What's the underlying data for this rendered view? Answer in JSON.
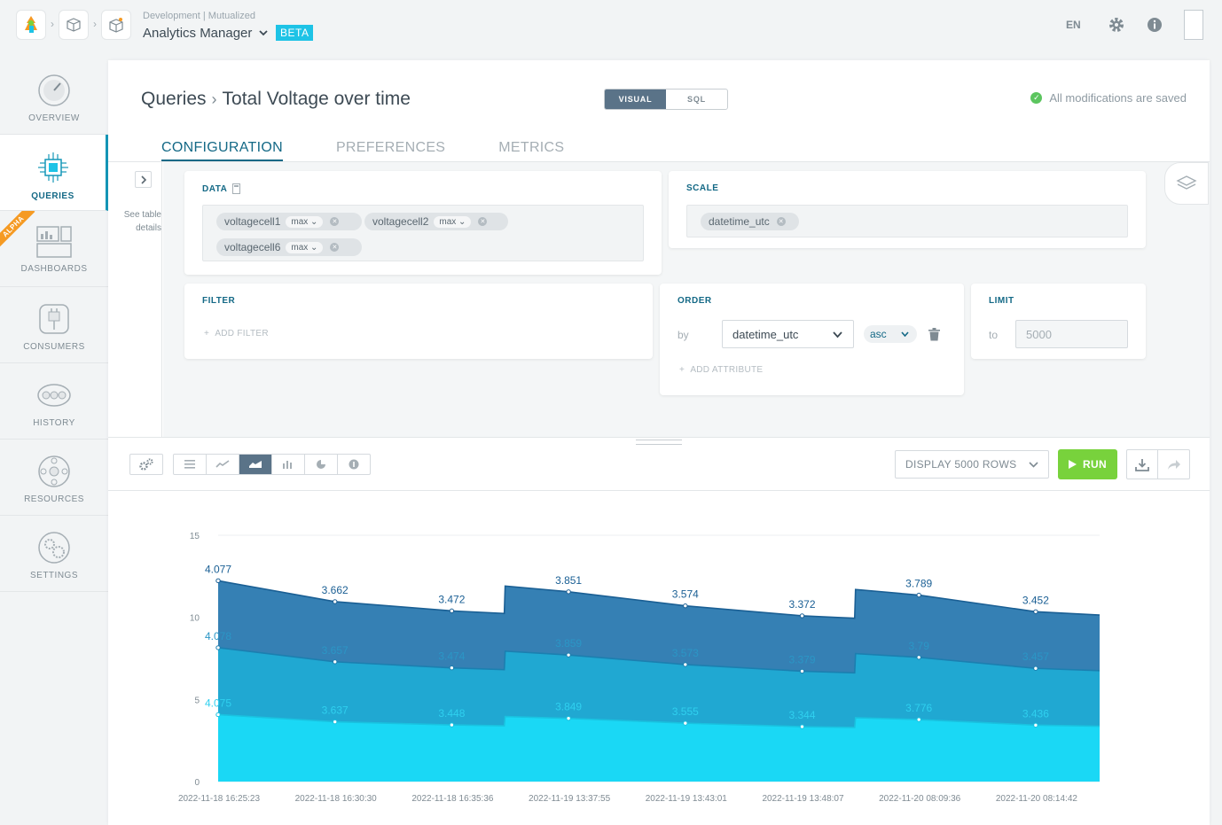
{
  "topbar": {
    "org_path": "Development | Mutualized",
    "app_name": "Analytics Manager",
    "badge": "BETA",
    "lang": "EN"
  },
  "sidebar": {
    "items": [
      {
        "label": "OVERVIEW"
      },
      {
        "label": "QUERIES"
      },
      {
        "label": "DASHBOARDS",
        "badge": "ALPHA"
      },
      {
        "label": "CONSUMERS"
      },
      {
        "label": "HISTORY"
      },
      {
        "label": "RESOURCES"
      },
      {
        "label": "SETTINGS"
      }
    ]
  },
  "page": {
    "breadcrumb_root": "Queries",
    "title": "Total Voltage over time",
    "mode_visual": "VISUAL",
    "mode_sql": "SQL",
    "saved_text": "All modifications are saved",
    "tabs": [
      "CONFIGURATION",
      "PREFERENCES",
      "METRICS"
    ],
    "see_table": "See table details"
  },
  "config": {
    "data_title": "DATA",
    "data_chips": [
      {
        "name": "voltagecell1",
        "agg": "max"
      },
      {
        "name": "voltagecell2",
        "agg": "max"
      },
      {
        "name": "voltagecell6",
        "agg": "max"
      }
    ],
    "scale_title": "SCALE",
    "scale_chip": "datetime_utc",
    "filter_title": "FILTER",
    "add_filter": "ADD FILTER",
    "order_title": "ORDER",
    "order_by_label": "by",
    "order_attr": "datetime_utc",
    "order_dir": "asc",
    "add_attribute": "ADD ATTRIBUTE",
    "limit_title": "LIMIT",
    "limit_to_label": "to",
    "limit_placeholder": "5000"
  },
  "toolbar": {
    "display_rows": "DISPLAY 5000 ROWS",
    "run_label": "RUN"
  },
  "colors": {
    "accent": "#146986",
    "run_green": "#78d23c",
    "series_bottom": "#1ad8f5",
    "series_middle": "#20a8d2",
    "series_top": "#3580b4"
  },
  "chart_data": {
    "type": "area",
    "stacked": true,
    "x": [
      "2022-11-18 16:25:23",
      "2022-11-18 16:30:30",
      "2022-11-18 16:35:36",
      "2022-11-19 13:37:55",
      "2022-11-19 13:43:01",
      "2022-11-19 13:48:07",
      "2022-11-20 08:09:36",
      "2022-11-20 08:14:42"
    ],
    "ylim": [
      0,
      15
    ],
    "yticks": [
      0,
      5,
      10,
      15
    ],
    "series": [
      {
        "values": [
          4.075,
          3.637,
          3.448,
          3.849,
          3.555,
          3.344,
          3.776,
          3.436
        ]
      },
      {
        "values": [
          4.078,
          3.657,
          3.474,
          3.859,
          3.573,
          3.379,
          3.79,
          3.457
        ]
      },
      {
        "values": [
          4.077,
          3.662,
          3.472,
          3.851,
          3.574,
          3.372,
          3.789,
          3.452
        ]
      }
    ]
  }
}
